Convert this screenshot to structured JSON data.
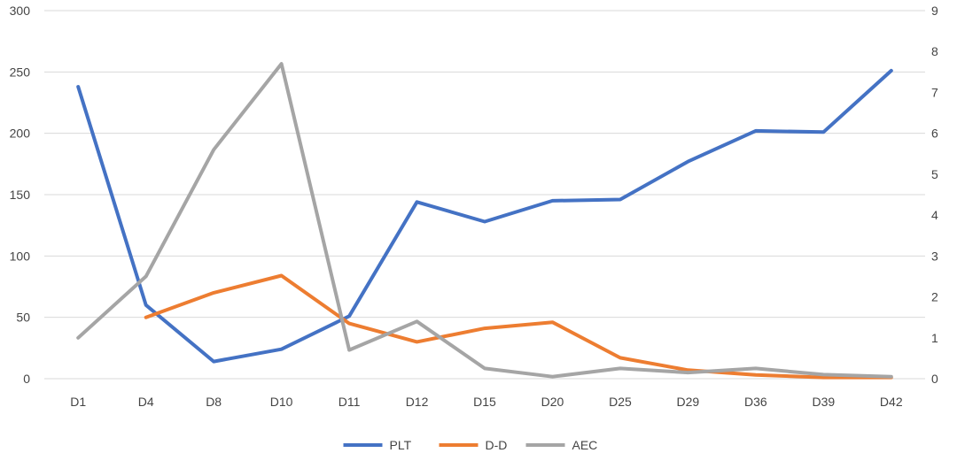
{
  "chart_data": {
    "type": "line",
    "title": "",
    "xlabel": "",
    "ylabel": "",
    "categories": [
      "D1",
      "D4",
      "D8",
      "D10",
      "D11",
      "D12",
      "D15",
      "D20",
      "D25",
      "D29",
      "D36",
      "D39",
      "D42"
    ],
    "y_left": {
      "min": 0,
      "max": 300,
      "ticks": [
        "0",
        "50",
        "100",
        "150",
        "200",
        "250",
        "300"
      ]
    },
    "y_right": {
      "min": 0,
      "max": 9,
      "ticks": [
        "0",
        "1",
        "2",
        "3",
        "4",
        "5",
        "6",
        "7",
        "8",
        "9"
      ]
    },
    "grid": true,
    "legend_position": "bottom",
    "series": [
      {
        "name": "PLT",
        "axis": "left",
        "color": "#4472C4",
        "values": [
          238,
          60,
          14,
          24,
          51,
          144,
          128,
          145,
          146,
          177,
          202,
          201,
          251
        ]
      },
      {
        "name": "D-D",
        "axis": "left",
        "color": "#ED7D31",
        "values": [
          null,
          50,
          70,
          84,
          45,
          30,
          41,
          46,
          17,
          7,
          3,
          1,
          1
        ]
      },
      {
        "name": "AEC",
        "axis": "right",
        "color": "#A5A5A5",
        "values": [
          1.0,
          2.5,
          5.6,
          7.7,
          0.7,
          1.4,
          0.25,
          0.05,
          0.25,
          0.15,
          0.25,
          0.1,
          0.05
        ]
      }
    ]
  }
}
